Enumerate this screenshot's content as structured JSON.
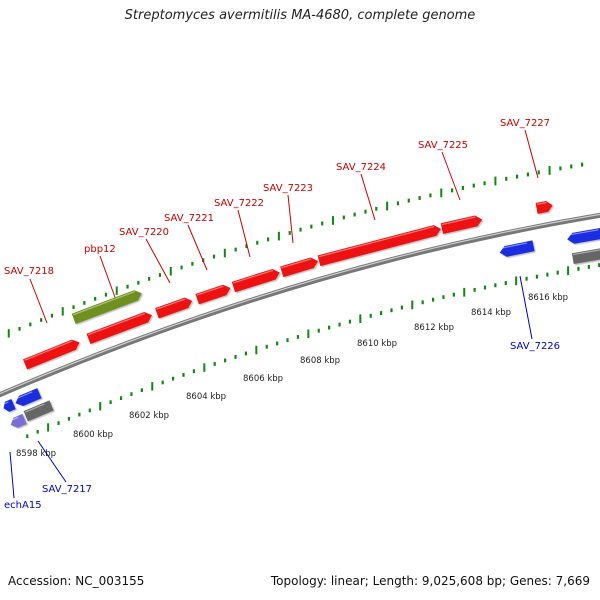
{
  "title": "Streptomyces avermitilis MA-4680, complete genome",
  "footer": {
    "accession": "Accession: NC_003155",
    "summary": "Topology: linear; Length: 9,025,608 bp; Genes: 7,669"
  },
  "colors": {
    "forward_gene": "#ee1111",
    "reverse_gene": "#1a2ee0",
    "named_gene": "#6f8f1f",
    "pseudo_gene": "#666666",
    "light_gene": "#7a6fd6",
    "forward_label": "#cc0000",
    "reverse_label": "#0000cc",
    "ticks": "#118811",
    "backbone": "#888888"
  },
  "scale": {
    "unit": "kbp",
    "labels": [
      "8598 kbp",
      "8600 kbp",
      "8602 kbp",
      "8604 kbp",
      "8606 kbp",
      "8608 kbp",
      "8610 kbp",
      "8612 kbp",
      "8614 kbp",
      "8616 kbp"
    ]
  },
  "forward_genes": [
    {
      "label": "SAV_7218",
      "color": "forward_gene"
    },
    {
      "label": "pbp12",
      "color": "named_gene"
    },
    {
      "label": "",
      "color": "forward_gene"
    },
    {
      "label": "SAV_7220",
      "color": "forward_gene"
    },
    {
      "label": "SAV_7221",
      "color": "forward_gene"
    },
    {
      "label": "SAV_7222",
      "color": "forward_gene"
    },
    {
      "label": "SAV_7223",
      "color": "forward_gene"
    },
    {
      "label": "SAV_7224",
      "color": "forward_gene"
    },
    {
      "label": "SAV_7225",
      "color": "forward_gene"
    },
    {
      "label": "SAV_7227",
      "color": "forward_gene"
    }
  ],
  "reverse_genes": [
    {
      "label": "",
      "color": "reverse_gene"
    },
    {
      "label": "",
      "color": "reverse_gene"
    },
    {
      "label": "echA15",
      "color": "light_gene"
    },
    {
      "label": "SAV_7217",
      "color": "pseudo_gene"
    },
    {
      "label": "SAV_7226",
      "color": "reverse_gene"
    },
    {
      "label": "",
      "color": "reverse_gene"
    },
    {
      "label": "",
      "color": "pseudo_gene"
    }
  ]
}
